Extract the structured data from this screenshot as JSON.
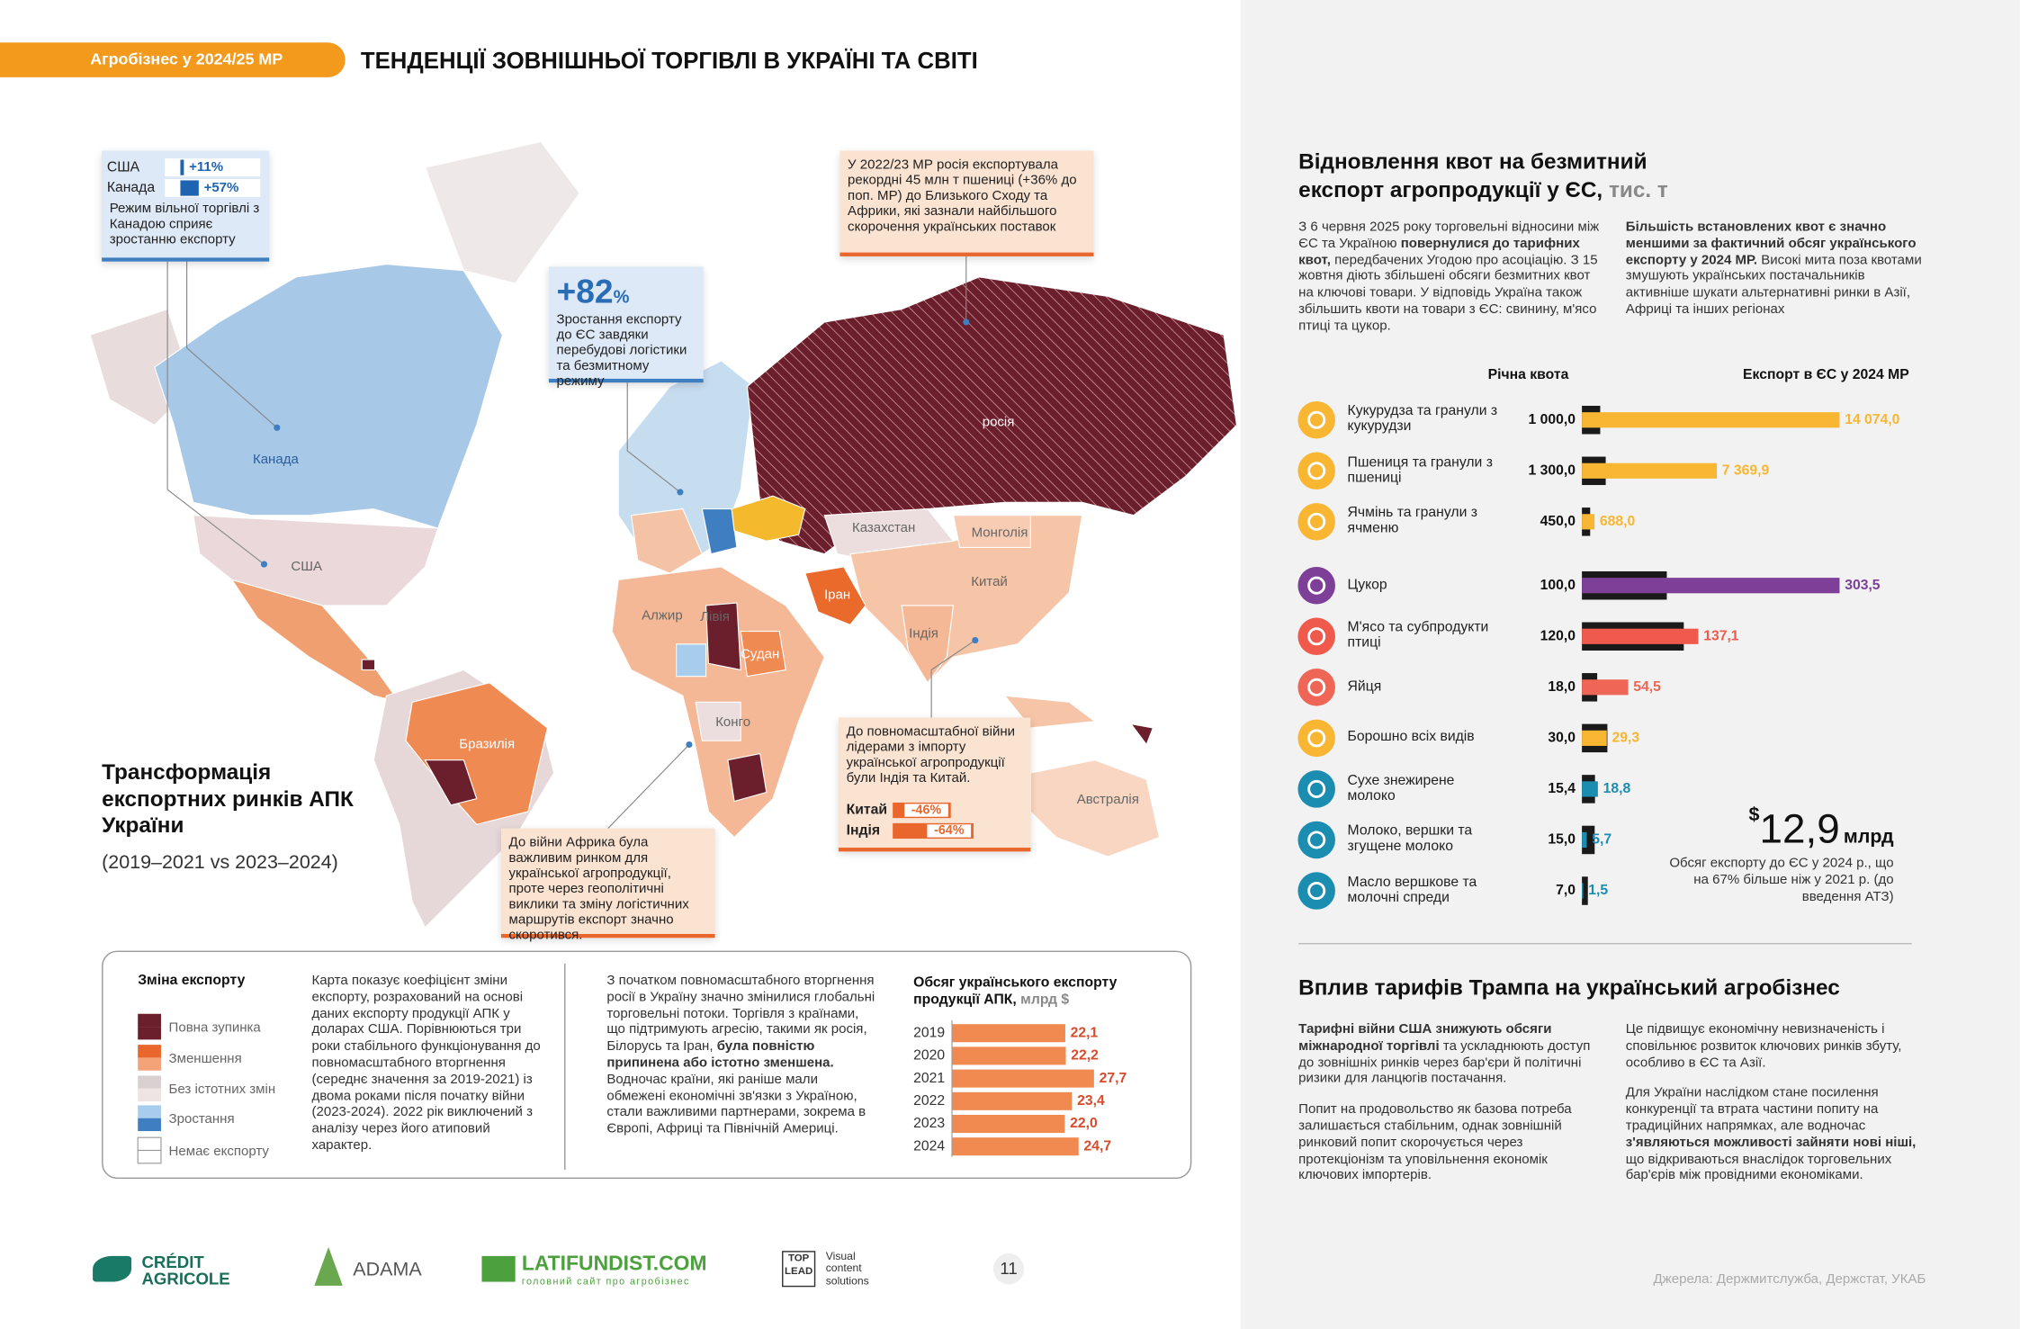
{
  "header": {
    "tag": "Агробізнес у 2024/25 МР",
    "title": "ТЕНДЕНЦІЇ ЗОВНІШНЬОЇ ТОРГІВЛІ В УКРАЇНІ ТА СВІТІ"
  },
  "map": {
    "title": "Трансформація експортних ринків АПК України",
    "subtitle": "(2019–2021 vs 2023–2024)",
    "labels": [
      "Канада",
      "США",
      "Бразилія",
      "Алжир",
      "Лівія",
      "Судан",
      "Конго",
      "Іран",
      "Індія",
      "Китай",
      "Монголія",
      "Казахстан",
      "росія",
      "Австралія"
    ],
    "callouts": {
      "north_america": {
        "rows": [
          {
            "country": "США",
            "value": 11,
            "label": "+11%"
          },
          {
            "country": "Канада",
            "value": 57,
            "label": "+57%"
          }
        ],
        "text": "Режим вільної торгівлі з Канадою сприяє зростанню експорту"
      },
      "russia": {
        "text": "У 2022/23 МР росія експортувала рекордні 45 млн т пшениці (+36% до поп. МР) до Близького Сходу та Африки, які зазнали найбільшого скорочення українських поставок"
      },
      "europe": {
        "big": "+82",
        "pct": "%",
        "text": "Зростання експорту до ЄС завдяки перебудові логістики та безмитному режиму"
      },
      "asia": {
        "text": "До повномасштабної війни лідерами з імпорту української агропродукції були Індія та Китай.",
        "rows": [
          {
            "country": "Китай",
            "value": -46,
            "label": "-46%"
          },
          {
            "country": "Індія",
            "value": -64,
            "label": "-64%"
          }
        ]
      },
      "africa": {
        "text": "До війни Африка була важливим ринком для української агропродукції, проте через геополітичні виклики та зміну логістичних маршрутів експорт значно скоротився."
      }
    }
  },
  "legend": {
    "title": "Зміна експорту",
    "items": [
      "Повна зупинка",
      "Зменшення",
      "Без істотних змін",
      "Зростання",
      "Немає експорту"
    ]
  },
  "notes": {
    "method": [
      "Карта показує коефіцієнт зміни експорту, розрахований на основі даних експорту продукції АПК у доларах США. Порівнюються три роки стабільного функціонування до повномасштабного вторгнення (середнє значення за 2019-2021) із двома роками після початку війни (2023-2024). 2022 рік виключений з аналізу через його атиповий характер."
    ],
    "shift": [
      "З початком повномасштабного вторгнення росії в Україну значно змінилися глобальні торговельні потоки. Торгівля з країнами, що підтримують агресію, такими як росія, Білорусь та Іран, ",
      {
        "bold": "була повністю припинена або істотно зменшена."
      },
      " Водночас країни, які раніше мали обмежені економічні зв'язки з Україною, стали важливими партнерами, зокрема в Європі, Африці та Північній Америці."
    ]
  },
  "volume": {
    "title": "Обсяг українського експорту продукції АПК,",
    "unit": "млрд $",
    "years": [
      "2019",
      "2020",
      "2021",
      "2022",
      "2023",
      "2024"
    ],
    "values": [
      22.1,
      22.2,
      27.7,
      23.4,
      22.0,
      24.7
    ],
    "value_labels": [
      "22,1",
      "22,2",
      "27,7",
      "23,4",
      "22,0",
      "24,7"
    ]
  },
  "quota": {
    "title": "Відновлення квот на безмитний експорт агропродукції у ЄС,",
    "unit": "тис. т",
    "intro_left": [
      "З 6 червня 2025 року торговельні відносини між ЄС та Україною ",
      {
        "bold": "повернулися до тарифних квот,"
      },
      " передбачених Угодою про асоціацію. З 15 жовтня діють збільшені обсяги безмитних квот на ключові товари. У відповідь Україна також збільшить квоти на товари з ЄС: свинину, м'ясо птиці та цукор."
    ],
    "intro_right": [
      {
        "bold": "Більшість встановлених квот є значно меншими за фактичний обсяг українського експорту у 2024 МР."
      },
      " Високі мита поза квотами змушують українських постачальників активніше шукати альтернативні ринки в Азії, Африці та інших регіонах"
    ],
    "col_quota": "Річна квота",
    "col_export": "Експорт в ЄС у 2024 МР",
    "groups": [
      [
        {
          "name": "Кукурудза та гранули з кукурудзи",
          "color": "#f8b632",
          "quota": 1000.0,
          "quota_label": "1 000,0",
          "export": 14074.0,
          "export_label": "14 074,0"
        },
        {
          "name": "Пшениця та гранули з пшениці",
          "color": "#f8b632",
          "quota": 1300.0,
          "quota_label": "1 300,0",
          "export": 7369.9,
          "export_label": "7 369,9"
        },
        {
          "name": "Ячмінь та гранули з ячменю",
          "color": "#f8b632",
          "quota": 450.0,
          "quota_label": "450,0",
          "export": 688.0,
          "export_label": "688,0"
        }
      ],
      [
        {
          "name": "Цукор",
          "color": "#7d3f97",
          "quota": 100.0,
          "quota_label": "100,0",
          "export": 303.5,
          "export_label": "303,5"
        },
        {
          "name": "М'ясо та субпродукти птиці",
          "color": "#ef5a4c",
          "quota": 120.0,
          "quota_label": "120,0",
          "export": 137.1,
          "export_label": "137,1"
        },
        {
          "name": "Яйця",
          "color": "#ef6656",
          "quota": 18.0,
          "quota_label": "18,0",
          "export": 54.5,
          "export_label": "54,5"
        },
        {
          "name": "Борошно всіх видів",
          "color": "#f8b632",
          "quota": 30.0,
          "quota_label": "30,0",
          "export": 29.3,
          "export_label": "29,3"
        },
        {
          "name": "Сухе знежирене молоко",
          "color": "#1b8db0",
          "quota": 15.4,
          "quota_label": "15,4",
          "export": 18.8,
          "export_label": "18,8"
        },
        {
          "name": "Молоко, вершки та згущене молоко",
          "color": "#1b8db0",
          "quota": 15.0,
          "quota_label": "15,0",
          "export": 5.7,
          "export_label": "5,7"
        },
        {
          "name": "Масло вершкове та молочні спреди",
          "color": "#1b8db0",
          "quota": 7.0,
          "quota_label": "7,0",
          "export": 1.5,
          "export_label": "1,5"
        }
      ]
    ],
    "total": {
      "currency": "$",
      "amount": "12,9",
      "unit": "млрд",
      "note": "Обсяг експорту до ЄС у 2024 р., що на 67% більше ніж у 2021 р. (до введення АТЗ)"
    }
  },
  "tariffs": {
    "title": "Вплив тарифів Трампа на український агробізнес",
    "left": [
      [
        {
          "bold": "Тарифні війни США знижують обсяги міжнародної торгівлі"
        },
        " та ускладнюють доступ до зовнішніх ринків через бар'єри й політичні ризики для ланцюгів постачання."
      ],
      [
        "Попит на продовольство як базова потреба залишається стабільним, однак зовнішній ринковий попит скорочується через протекціонізм та уповільнення економік ключових імпортерів."
      ]
    ],
    "right": [
      [
        "Це підвищує економічну невизначеність і сповільнює розвиток ключових ринків збуту, особливо в ЄС та Азії."
      ],
      [
        "Для України наслідком стане посилення конкуренції та втрата частини попиту на традиційних напрямках, але водночас ",
        {
          "bold": "з'являються можливості зайняти нові ніші,"
        },
        " що відкриваються внаслідок торговельних бар'єрів між провідними економіками."
      ]
    ]
  },
  "footer": {
    "logos": [
      "CRÉDIT",
      "AGRICOLE",
      "ADAMA",
      "LATIFUNDIST.COM",
      "головний сайт про агробізнес",
      "TOP",
      "LEAD",
      "Visual",
      "content",
      "solutions"
    ],
    "page": "11",
    "sources": "Джерела: Держмитслужба, Держстат, УКАБ"
  }
}
